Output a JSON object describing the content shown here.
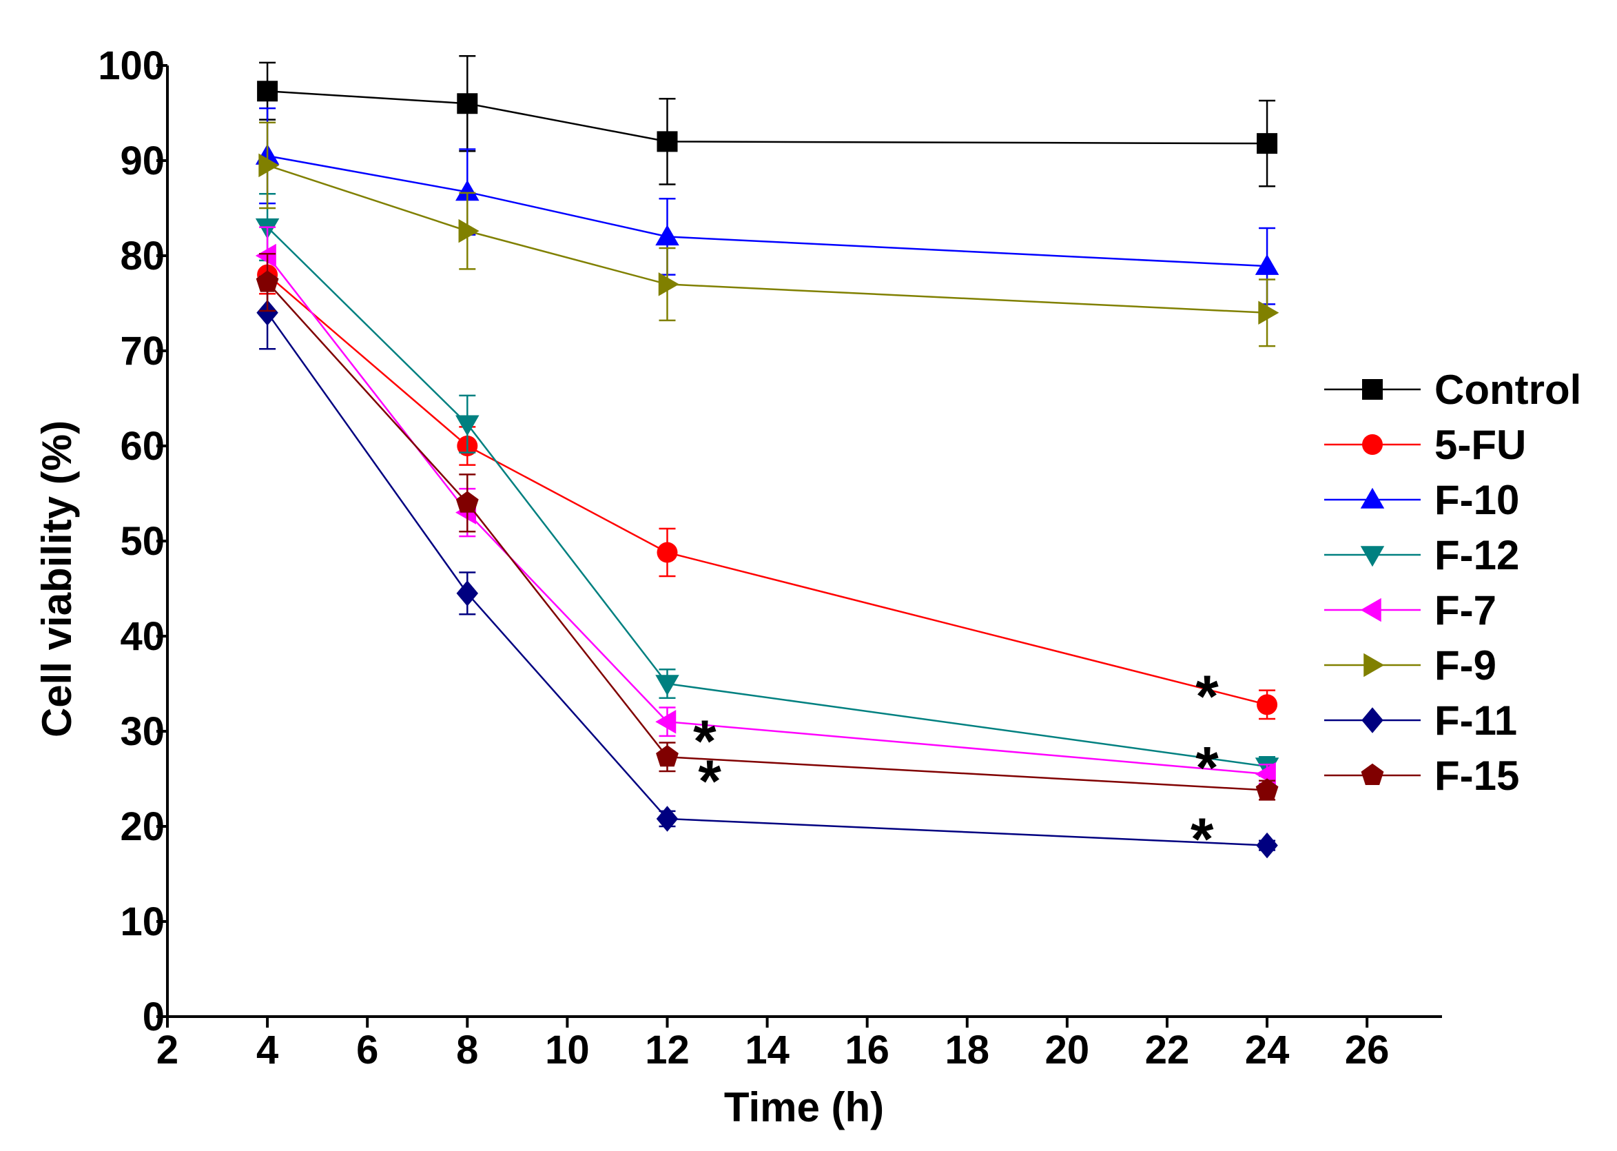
{
  "chart_data": {
    "type": "line",
    "title": "",
    "xlabel": "Time (h)",
    "ylabel": "Cell viability (%)",
    "x_ticks": [
      {
        "label": "2",
        "pos": 2
      },
      {
        "label": "4",
        "pos": 4
      },
      {
        "label": "6",
        "pos": 6
      },
      {
        "label": "8",
        "pos": 8
      },
      {
        "label": "10",
        "pos": 10
      },
      {
        "label": "12",
        "pos": 12
      },
      {
        "label": "14",
        "pos": 14
      },
      {
        "label": "16",
        "pos": 16
      },
      {
        "label": "18",
        "pos": 18
      },
      {
        "label": "20",
        "pos": 20
      },
      {
        "label": "22",
        "pos": 22
      },
      {
        "label": "24",
        "pos": 24
      },
      {
        "label": "26",
        "pos": 26
      }
    ],
    "y_ticks": [
      0,
      10,
      20,
      30,
      40,
      50,
      60,
      70,
      80,
      90,
      100
    ],
    "xlim": [
      2,
      27.5
    ],
    "ylim": [
      0,
      100
    ],
    "legend_position": "right",
    "x": [
      4,
      8,
      12,
      24
    ],
    "x_display_pos": [
      4,
      8,
      12,
      24
    ],
    "series": [
      {
        "name": "Control",
        "color": "#000000",
        "marker": "square",
        "values": [
          97.3,
          96.0,
          92.0,
          91.8
        ],
        "errors": [
          3.0,
          5.0,
          4.5,
          4.5
        ]
      },
      {
        "name": "5-FU",
        "color": "#ff0000",
        "marker": "circle",
        "values": [
          78.0,
          60.0,
          48.8,
          32.8
        ],
        "errors": [
          2.0,
          2.0,
          2.5,
          1.5
        ]
      },
      {
        "name": "F-10",
        "color": "#0000ff",
        "marker": "triangle-up",
        "values": [
          90.5,
          86.7,
          82.0,
          78.9
        ],
        "errors": [
          5.0,
          4.5,
          4.0,
          4.0
        ]
      },
      {
        "name": "F-12",
        "color": "#008080",
        "marker": "triangle-down",
        "values": [
          83.0,
          62.3,
          35.0,
          26.3
        ],
        "errors": [
          3.5,
          3.0,
          1.5,
          1.0
        ]
      },
      {
        "name": "F-7",
        "color": "#ff00ff",
        "marker": "triangle-left",
        "values": [
          80.0,
          53.0,
          31.0,
          25.5
        ],
        "errors": [
          3.0,
          2.5,
          1.5,
          1.0
        ]
      },
      {
        "name": "F-9",
        "color": "#808000",
        "marker": "triangle-right",
        "values": [
          89.5,
          82.6,
          77.0,
          74.0
        ],
        "errors": [
          4.5,
          4.0,
          3.8,
          3.5
        ]
      },
      {
        "name": "F-11",
        "color": "#000080",
        "marker": "diamond",
        "values": [
          74.0,
          44.5,
          20.8,
          18.0
        ],
        "errors": [
          3.8,
          2.2,
          0.8,
          0.5
        ]
      },
      {
        "name": "F-15",
        "color": "#800000",
        "marker": "pentagon",
        "values": [
          77.2,
          54.0,
          27.3,
          23.8
        ],
        "errors": [
          3.0,
          3.0,
          1.5,
          1.0
        ]
      }
    ],
    "annotations": [
      {
        "text": "*",
        "x": 12.75,
        "y": 29.0
      },
      {
        "text": "*",
        "x": 12.85,
        "y": 24.8
      },
      {
        "text": "*",
        "x": 22.8,
        "y": 33.7
      },
      {
        "text": "*",
        "x": 22.8,
        "y": 26.2
      },
      {
        "text": "*",
        "x": 22.7,
        "y": 18.7
      }
    ]
  }
}
